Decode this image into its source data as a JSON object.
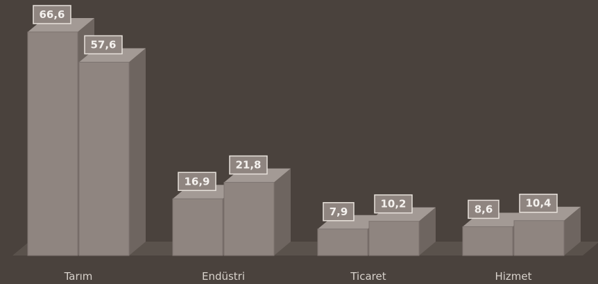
{
  "chart_data": {
    "type": "bar",
    "categories": [
      "Tarım",
      "Endüstri",
      "Ticaret",
      "Hizmet"
    ],
    "series": [
      {
        "values": [
          66.6,
          16.9,
          7.9,
          8.6
        ],
        "labels": [
          "66,6",
          "16,9",
          "7,9",
          "8,6"
        ]
      },
      {
        "values": [
          57.6,
          21.8,
          10.2,
          10.4
        ],
        "labels": [
          "57,6",
          "21,8",
          "10,2",
          "10,4"
        ]
      }
    ],
    "title": "",
    "xlabel": "",
    "ylabel": "",
    "ylim": [
      0,
      70
    ],
    "grid": false,
    "legend": "none",
    "style": "3d",
    "colors": {
      "background": "#4a423d",
      "bar_front": "#8f8580",
      "bar_top": "#a39a95",
      "bar_side": "#6e6560",
      "floor": "#5a524c",
      "label_box": "#8f8580",
      "label_border": "#e8e2dc",
      "text": "#f4f1ee",
      "axis_text": "#d8d2cc"
    }
  }
}
